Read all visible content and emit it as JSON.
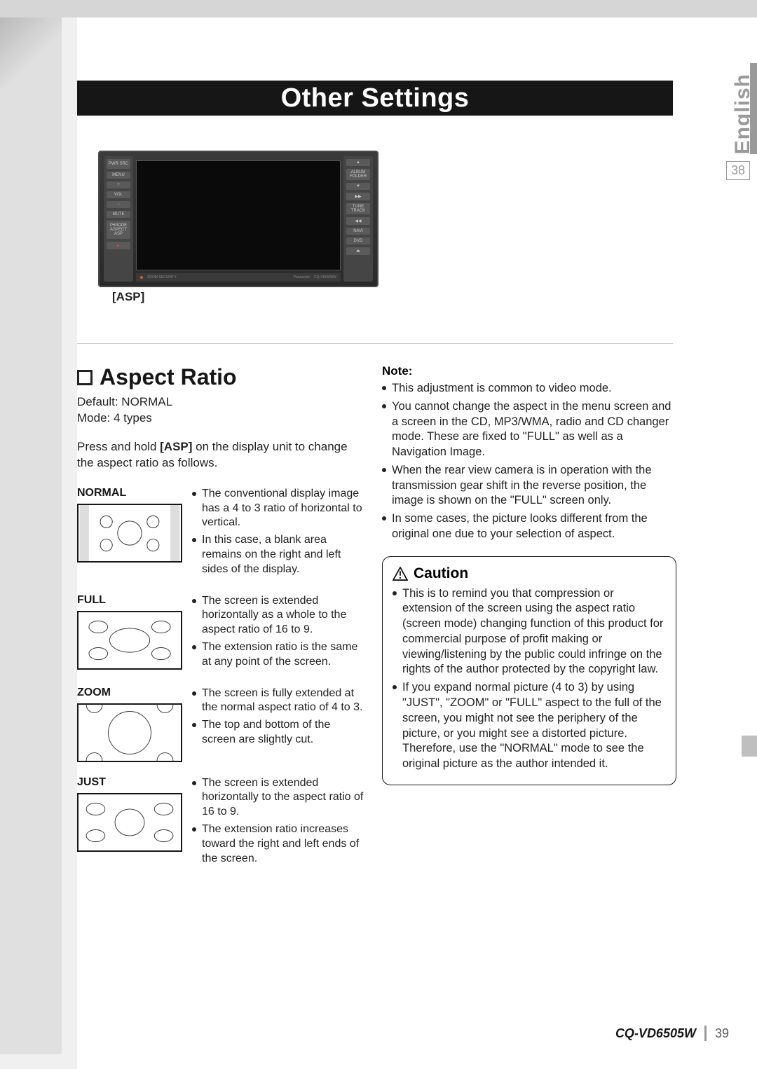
{
  "language_tab": "English",
  "page_number_box": "38",
  "title": "Other Settings",
  "device_caption": "[ASP]",
  "device": {
    "left_buttons": [
      "PWR\nSRC",
      "MENU",
      "+",
      "VOL",
      "−",
      "MUTE",
      "P•MODE\nASPECT\nASP",
      "🔺"
    ],
    "right_buttons": [
      "▲",
      "ALBUM\nFOLDER",
      "▼",
      "▶▶",
      "TUNE\nTRACK",
      "◀◀",
      "NAVI",
      "DVD",
      "⏏"
    ],
    "bottom_labels": [
      "ZOOM SECURITY",
      "Panasonic",
      "CQ-VD6505W"
    ]
  },
  "section": {
    "title": "Aspect Ratio",
    "default": "Default: NORMAL",
    "mode": "Mode: 4 types",
    "instruction_pre": "Press and hold ",
    "instruction_bold": "[ASP]",
    "instruction_post": " on the display unit to change the aspect ratio as follows."
  },
  "modes": [
    {
      "name": "NORMAL",
      "bullets": [
        "The conventional display image has a 4 to 3 ratio of horizontal to vertical.",
        "In this case, a blank area remains on the right and left sides of the display."
      ],
      "thumb": "normal"
    },
    {
      "name": "FULL",
      "bullets": [
        "The screen is extended horizontally as a whole to the aspect ratio of 16 to 9.",
        "The extension ratio is the same at any point of the screen."
      ],
      "thumb": "full"
    },
    {
      "name": "ZOOM",
      "bullets": [
        "The screen is fully extended at the normal aspect ratio of 4 to 3.",
        "The top and bottom of the screen are slightly cut."
      ],
      "thumb": "zoom"
    },
    {
      "name": "JUST",
      "bullets": [
        "The screen is extended horizontally to the aspect ratio of 16 to 9.",
        "The extension ratio increases toward the right and left ends of the screen."
      ],
      "thumb": "just"
    }
  ],
  "note_head": "Note:",
  "notes": [
    "This adjustment is common to video mode.",
    "You cannot change the aspect in the menu screen and a screen in the CD, MP3/WMA, radio and CD changer mode. These are fixed to \"FULL\" as well as a Navigation Image.",
    "When the rear view camera is in operation with the transmission gear shift in the reverse position, the image is shown on the \"FULL\" screen only.",
    "In some cases, the picture looks different from the original one due to your selection of aspect."
  ],
  "caution_head": "Caution",
  "cautions": [
    "This is to remind you that compression or extension of the screen using the aspect ratio (screen mode) changing function of this product for commercial purpose of profit making or viewing/listening by the public could infringe on the rights of the author protected by the copyright law.",
    "If you expand normal picture (4 to 3) by using \"JUST\", \"ZOOM\" or \"FULL\" aspect to the full of the screen, you might not see the periphery of the picture, or you might see a distorted picture. Therefore, use the \"NORMAL\" mode to see the original picture as the author intended it."
  ],
  "footer": {
    "model": "CQ-VD6505W",
    "page": "39"
  },
  "colors": {
    "title_bg": "#161616",
    "gray": "#e0e0e0",
    "tab": "#9a9a9a"
  }
}
